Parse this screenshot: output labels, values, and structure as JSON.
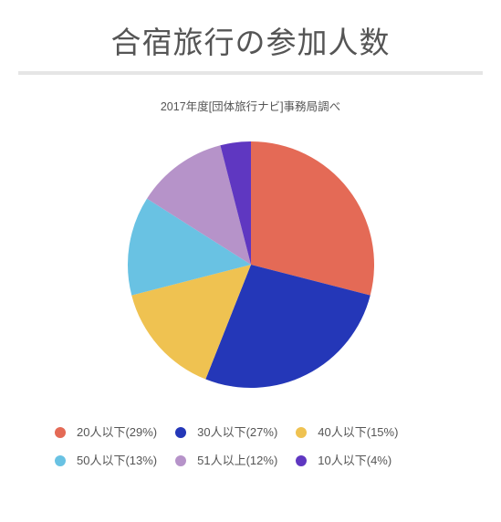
{
  "title": "合宿旅行の参加人数",
  "subtitle": "2017年度[団体旅行ナビ]事務局調べ",
  "chart": {
    "type": "pie",
    "background_color": "#ffffff",
    "radius": 135,
    "start_angle_deg": 0,
    "slices": [
      {
        "label": "20人以下",
        "percent": 29,
        "color": "#e46a56"
      },
      {
        "label": "30人以下",
        "percent": 27,
        "color": "#2437b8"
      },
      {
        "label": "40人以下",
        "percent": 15,
        "color": "#efc251"
      },
      {
        "label": "50人以下",
        "percent": 13,
        "color": "#69c2e3"
      },
      {
        "label": "51人以上",
        "percent": 12,
        "color": "#b693c9"
      },
      {
        "label": "10人以下",
        "percent": 4,
        "color": "#5f37c1"
      }
    ]
  },
  "title_color": "#555555",
  "underline_color": "#e5e5e5",
  "text_color": "#555555"
}
